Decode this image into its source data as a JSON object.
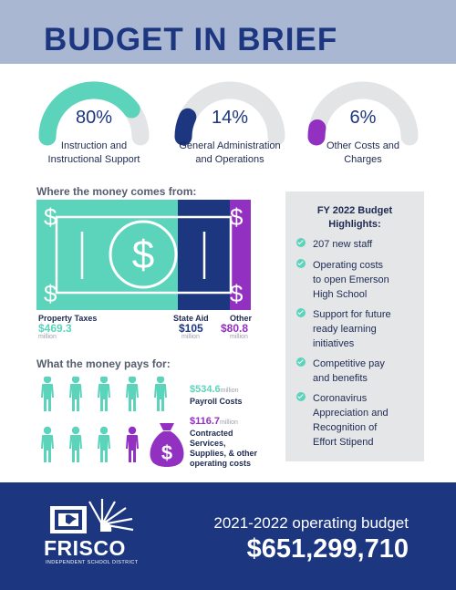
{
  "title": "BUDGET IN BRIEF",
  "colors": {
    "teal": "#5cd3bb",
    "navy": "#1c3680",
    "purple": "#9230c2",
    "gray_track": "#e2e4e6"
  },
  "gauges": [
    {
      "percent": "80%",
      "fraction": 0.8,
      "caption_line1": "Instruction and",
      "caption_line2": "Instructional Support",
      "color": "#5cd3bb"
    },
    {
      "percent": "14%",
      "fraction": 0.14,
      "caption_line1": "General Administration",
      "caption_line2": "and Operations",
      "color": "#1c3680"
    },
    {
      "percent": "6%",
      "fraction": 0.06,
      "caption_line1": "Other Costs and",
      "caption_line2": "Charges",
      "color": "#9230c2"
    }
  ],
  "revenue": {
    "heading": "Where the money comes from:",
    "bill_icon": "dollar-bill-icon",
    "sources": [
      {
        "label": "Property Taxes",
        "amount": "$469.3",
        "unit": "million",
        "color": "#5cd3bb"
      },
      {
        "label": "State Aid",
        "amount": "$105",
        "unit": "million",
        "color": "#1c3680"
      },
      {
        "label": "Other",
        "amount": "$80.8",
        "unit": "million",
        "color": "#9230c2"
      }
    ]
  },
  "expenses": {
    "heading": "What the money pays for:",
    "person_icon": "person-icon",
    "moneybag_icon": "money-bag-icon",
    "items": [
      {
        "amount": "$534.6",
        "unit": "million",
        "desc_lines": [
          "Payroll Costs"
        ],
        "color": "#5cd3bb"
      },
      {
        "amount": "$116.7",
        "unit": "million",
        "desc_lines": [
          "Contracted",
          "Services,",
          "Supplies, & other",
          "operating costs"
        ],
        "color": "#9230c2"
      }
    ]
  },
  "highlights": {
    "title_line1": "FY 2022 Budget",
    "title_line2": "Highlights:",
    "items": [
      {
        "lines": [
          "207 new staff"
        ]
      },
      {
        "lines": [
          "Operating costs",
          "to open Emerson",
          "High School"
        ]
      },
      {
        "lines": [
          "Support for future",
          "ready learning",
          "initiatives"
        ]
      },
      {
        "lines": [
          "Competitive pay",
          "and benefits"
        ]
      },
      {
        "lines": [
          "Coronavirus",
          "Appreciation and",
          "Recognition of",
          "Effort Stipend"
        ]
      }
    ]
  },
  "footer": {
    "logo_name": "FRISCO",
    "logo_sub": "INDEPENDENT SCHOOL DISTRICT",
    "budget_label": "2021-2022 operating budget",
    "budget_value": "$651,299,710"
  }
}
